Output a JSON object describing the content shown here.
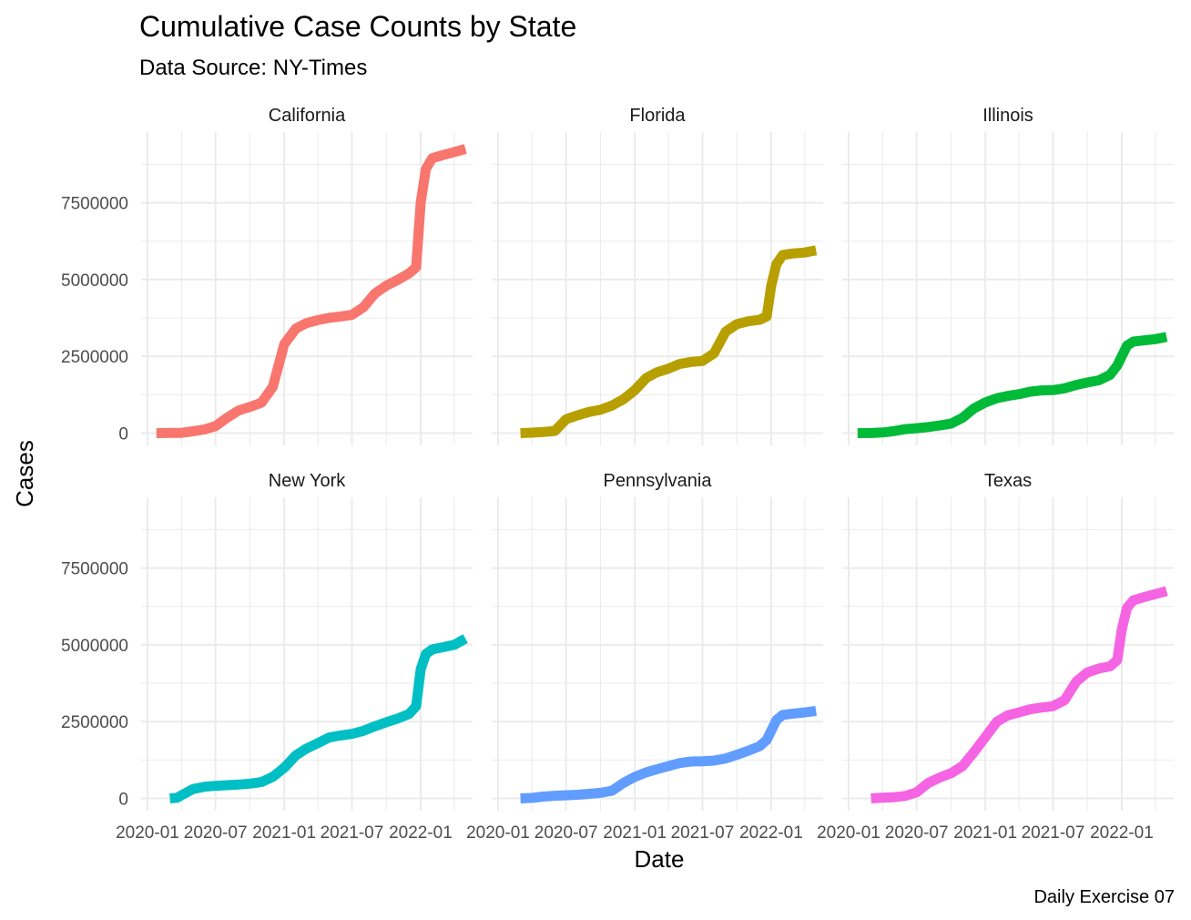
{
  "chart_data": {
    "type": "line",
    "title": "Cumulative Case Counts by State",
    "subtitle": "Data Source: NY-Times",
    "xlabel": "Date",
    "ylabel": "Cases",
    "caption": "Daily Exercise 07",
    "x_ticks": [
      "2020-01",
      "2020-07",
      "2021-01",
      "2021-07",
      "2022-01"
    ],
    "y_ticks": [
      "0",
      "2500000",
      "5000000",
      "7500000"
    ],
    "xlim": [
      "2019-12-15",
      "2022-05-20"
    ],
    "ylim": [
      -400000,
      9800000
    ],
    "grid": true,
    "legend": "none",
    "facets": [
      {
        "name": "California",
        "color": "#F8766D",
        "x": [
          "2020-01-25",
          "2020-03-01",
          "2020-04-01",
          "2020-05-01",
          "2020-06-01",
          "2020-07-01",
          "2020-08-01",
          "2020-09-01",
          "2020-10-01",
          "2020-11-01",
          "2020-12-01",
          "2021-01-01",
          "2021-02-01",
          "2021-03-01",
          "2021-04-01",
          "2021-05-01",
          "2021-06-01",
          "2021-07-01",
          "2021-08-01",
          "2021-09-01",
          "2021-10-01",
          "2021-11-01",
          "2021-12-01",
          "2021-12-20",
          "2022-01-01",
          "2022-01-15",
          "2022-02-01",
          "2022-03-01",
          "2022-04-01",
          "2022-05-01"
        ],
        "y": [
          0,
          5000,
          10000,
          60000,
          120000,
          230000,
          500000,
          740000,
          850000,
          990000,
          1500000,
          2900000,
          3400000,
          3580000,
          3680000,
          3750000,
          3800000,
          3850000,
          4100000,
          4550000,
          4800000,
          4990000,
          5200000,
          5400000,
          7500000,
          8600000,
          8950000,
          9050000,
          9150000,
          9250000
        ]
      },
      {
        "name": "Florida",
        "color": "#B79F00",
        "x": [
          "2020-03-01",
          "2020-04-01",
          "2020-05-01",
          "2020-06-01",
          "2020-07-01",
          "2020-08-01",
          "2020-09-01",
          "2020-10-01",
          "2020-11-01",
          "2020-12-01",
          "2021-01-01",
          "2021-02-01",
          "2021-03-01",
          "2021-04-01",
          "2021-05-01",
          "2021-06-01",
          "2021-07-01",
          "2021-08-01",
          "2021-09-01",
          "2021-10-01",
          "2021-11-01",
          "2021-12-01",
          "2021-12-20",
          "2022-01-01",
          "2022-01-15",
          "2022-02-01",
          "2022-03-01",
          "2022-04-01",
          "2022-05-01"
        ],
        "y": [
          0,
          15000,
          40000,
          70000,
          450000,
          580000,
          690000,
          760000,
          900000,
          1100000,
          1400000,
          1800000,
          1980000,
          2100000,
          2250000,
          2320000,
          2350000,
          2600000,
          3300000,
          3550000,
          3640000,
          3690000,
          3800000,
          4800000,
          5500000,
          5800000,
          5850000,
          5880000,
          5950000
        ]
      },
      {
        "name": "Illinois",
        "color": "#00BA38",
        "x": [
          "2020-01-25",
          "2020-03-01",
          "2020-04-01",
          "2020-05-01",
          "2020-06-01",
          "2020-07-01",
          "2020-08-01",
          "2020-09-01",
          "2020-10-01",
          "2020-11-01",
          "2020-12-01",
          "2021-01-01",
          "2021-02-01",
          "2021-03-01",
          "2021-04-01",
          "2021-05-01",
          "2021-06-01",
          "2021-07-01",
          "2021-08-01",
          "2021-09-01",
          "2021-10-01",
          "2021-11-01",
          "2021-12-01",
          "2021-12-20",
          "2022-01-15",
          "2022-02-01",
          "2022-03-01",
          "2022-04-01",
          "2022-05-01"
        ],
        "y": [
          0,
          2000,
          20000,
          65000,
          130000,
          160000,
          200000,
          250000,
          310000,
          500000,
          800000,
          1000000,
          1140000,
          1210000,
          1270000,
          1350000,
          1390000,
          1400000,
          1460000,
          1570000,
          1650000,
          1720000,
          1900000,
          2200000,
          2850000,
          2980000,
          3020000,
          3060000,
          3130000
        ]
      },
      {
        "name": "New York",
        "color": "#00BFC4",
        "x": [
          "2020-03-01",
          "2020-03-20",
          "2020-04-01",
          "2020-05-01",
          "2020-06-01",
          "2020-07-01",
          "2020-08-01",
          "2020-09-01",
          "2020-10-01",
          "2020-11-01",
          "2020-12-01",
          "2021-01-01",
          "2021-02-01",
          "2021-03-01",
          "2021-04-01",
          "2021-05-01",
          "2021-06-01",
          "2021-07-01",
          "2021-08-01",
          "2021-09-01",
          "2021-10-01",
          "2021-11-01",
          "2021-12-01",
          "2021-12-20",
          "2022-01-01",
          "2022-01-15",
          "2022-02-01",
          "2022-03-01",
          "2022-04-01",
          "2022-05-01"
        ],
        "y": [
          0,
          20000,
          100000,
          300000,
          380000,
          410000,
          430000,
          450000,
          480000,
          530000,
          700000,
          1000000,
          1400000,
          1620000,
          1800000,
          1980000,
          2050000,
          2100000,
          2200000,
          2350000,
          2480000,
          2600000,
          2750000,
          3000000,
          4200000,
          4700000,
          4850000,
          4920000,
          5000000,
          5200000
        ]
      },
      {
        "name": "Pennsylvania",
        "color": "#619CFF",
        "x": [
          "2020-03-01",
          "2020-04-01",
          "2020-05-01",
          "2020-06-01",
          "2020-07-01",
          "2020-08-01",
          "2020-09-01",
          "2020-10-01",
          "2020-11-01",
          "2020-12-01",
          "2021-01-01",
          "2021-02-01",
          "2021-03-01",
          "2021-04-01",
          "2021-05-01",
          "2021-06-01",
          "2021-07-01",
          "2021-08-01",
          "2021-09-01",
          "2021-10-01",
          "2021-11-01",
          "2021-12-01",
          "2021-12-20",
          "2022-01-15",
          "2022-02-01",
          "2022-03-01",
          "2022-04-01",
          "2022-05-01"
        ],
        "y": [
          0,
          15000,
          60000,
          85000,
          100000,
          120000,
          150000,
          180000,
          250000,
          500000,
          700000,
          850000,
          950000,
          1050000,
          1150000,
          1200000,
          1210000,
          1230000,
          1300000,
          1420000,
          1550000,
          1700000,
          1900000,
          2550000,
          2720000,
          2760000,
          2800000,
          2850000
        ]
      },
      {
        "name": "Texas",
        "color": "#F564E3",
        "x": [
          "2020-03-01",
          "2020-04-01",
          "2020-05-01",
          "2020-06-01",
          "2020-07-01",
          "2020-08-01",
          "2020-09-01",
          "2020-10-01",
          "2020-11-01",
          "2020-12-01",
          "2021-01-01",
          "2021-02-01",
          "2021-03-01",
          "2021-04-01",
          "2021-05-01",
          "2021-06-01",
          "2021-07-01",
          "2021-08-01",
          "2021-09-01",
          "2021-10-01",
          "2021-11-01",
          "2021-12-01",
          "2021-12-20",
          "2022-01-01",
          "2022-01-15",
          "2022-02-01",
          "2022-03-01",
          "2022-04-01",
          "2022-05-01"
        ],
        "y": [
          0,
          20000,
          40000,
          80000,
          200000,
          500000,
          680000,
          820000,
          1050000,
          1500000,
          2000000,
          2500000,
          2700000,
          2800000,
          2900000,
          2960000,
          3000000,
          3200000,
          3800000,
          4100000,
          4230000,
          4300000,
          4500000,
          5500000,
          6200000,
          6450000,
          6550000,
          6650000,
          6750000
        ]
      }
    ]
  }
}
